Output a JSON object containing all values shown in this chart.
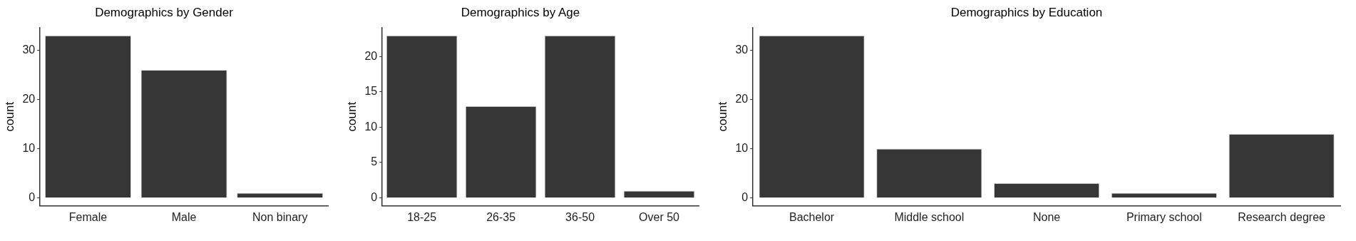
{
  "chart_data": [
    {
      "type": "bar",
      "title": "Demographics by Gender",
      "ylabel": "count",
      "categories": [
        "Female",
        "Male",
        "Non binary"
      ],
      "values": [
        33,
        26,
        1
      ],
      "color": "#363636",
      "ylim": [
        -1.65,
        34.65
      ],
      "yticks": [
        0,
        10,
        20,
        30
      ],
      "grid": false,
      "legend": false
    },
    {
      "type": "bar",
      "title": "Demographics by Age",
      "ylabel": "count",
      "categories": [
        "18-25",
        "26-35",
        "36-50",
        "Over 50"
      ],
      "values": [
        23,
        13,
        23,
        1
      ],
      "color": "#363636",
      "ylim": [
        -1.15,
        24.15
      ],
      "yticks": [
        0,
        5,
        10,
        15,
        20
      ],
      "grid": false,
      "legend": false
    },
    {
      "type": "bar",
      "title": "Demographics by Education",
      "ylabel": "count",
      "categories": [
        "Bachelor",
        "Middle school",
        "None",
        "Primary school",
        "Research degree"
      ],
      "values": [
        33,
        10,
        3,
        1,
        13
      ],
      "color": "#363636",
      "ylim": [
        -1.65,
        34.65
      ],
      "yticks": [
        0,
        10,
        20,
        30
      ],
      "grid": false,
      "legend": false
    }
  ]
}
